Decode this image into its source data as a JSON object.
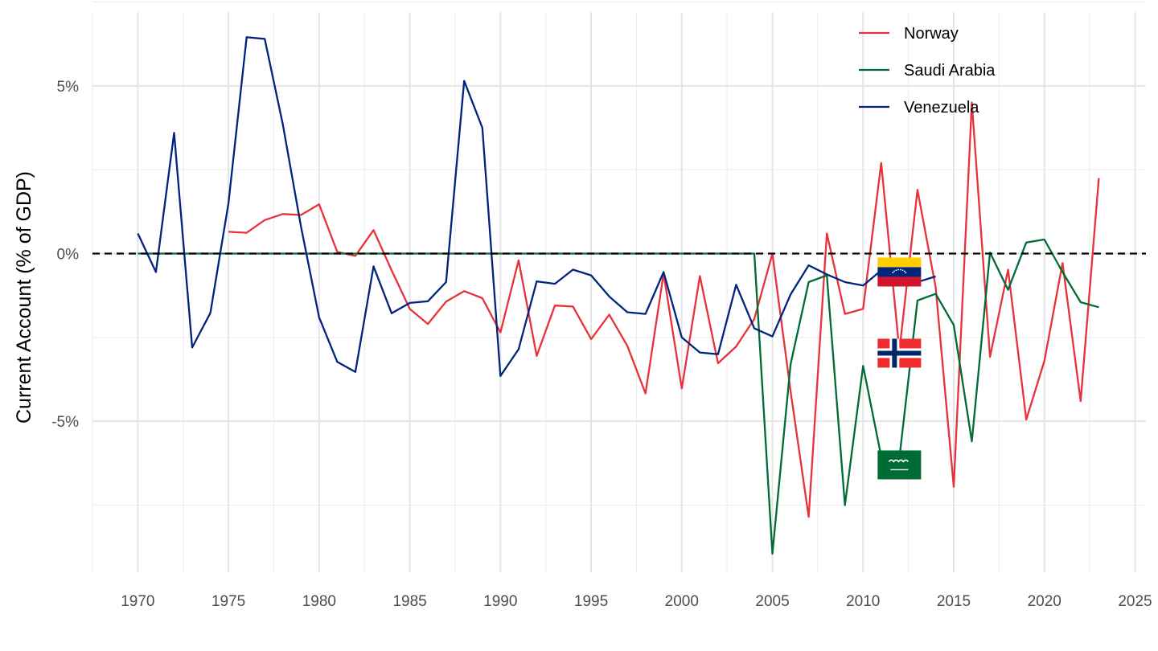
{
  "chart_data": {
    "type": "line",
    "ylabel": "Current Account (% of GDP)",
    "xlabel": "",
    "xlim": [
      1967.5,
      2025.6
    ],
    "ylim": [
      -9.5,
      7.2
    ],
    "x_ticks": [
      1970,
      1975,
      1980,
      1985,
      1990,
      1995,
      2000,
      2005,
      2010,
      2015,
      2020,
      2025
    ],
    "x_tick_labels": [
      "1970",
      "1975",
      "1980",
      "1985",
      "1990",
      "1995",
      "2000",
      "2005",
      "2010",
      "2015",
      "2020",
      "2025"
    ],
    "y_ticks": [
      5,
      0,
      -5
    ],
    "y_tick_labels": [
      "5%",
      "0%",
      "-5%"
    ],
    "y_minor_ticks": [
      7.5,
      2.5,
      -2.5,
      -7.5
    ],
    "reference_line": {
      "y": 0,
      "style": "dashed",
      "color": "#000000"
    },
    "grid": true,
    "legend_position": "top-right",
    "series": [
      {
        "name": "Norway",
        "color": "#e8313a",
        "x": [
          1975,
          1976,
          1977,
          1978,
          1979,
          1980,
          1981,
          1982,
          1983,
          1984,
          1985,
          1986,
          1987,
          1988,
          1989,
          1990,
          1991,
          1992,
          1993,
          1994,
          1995,
          1996,
          1997,
          1998,
          1999,
          2000,
          2001,
          2002,
          2003,
          2004,
          2005,
          2006,
          2007,
          2008,
          2009,
          2010,
          2011,
          2012,
          2013,
          2014,
          2015,
          2016,
          2017,
          2018,
          2019,
          2020,
          2021,
          2022,
          2023
        ],
        "y": [
          0.65,
          0.62,
          1.0,
          1.18,
          1.15,
          1.47,
          0.05,
          -0.07,
          0.7,
          -0.5,
          -1.65,
          -2.1,
          -1.43,
          -1.12,
          -1.33,
          -2.35,
          -0.2,
          -3.05,
          -1.55,
          -1.58,
          -2.55,
          -1.82,
          -2.75,
          -4.17,
          -0.6,
          -4.02,
          -0.67,
          -3.27,
          -2.77,
          -1.95,
          0.0,
          -4.1,
          -7.85,
          0.6,
          -1.8,
          -1.65,
          2.7,
          -2.9,
          1.9,
          -1.0,
          -6.95,
          4.5,
          -3.08,
          -0.48,
          -4.95,
          -3.2,
          -0.28,
          -4.4,
          2.25
        ]
      },
      {
        "name": "Saudi Arabia",
        "color": "#006c35",
        "x": [
          1970,
          1971,
          1972,
          1973,
          1974,
          1975,
          1976,
          1977,
          1978,
          1979,
          1980,
          1981,
          1982,
          1983,
          1984,
          1985,
          1986,
          1987,
          1988,
          1989,
          1990,
          1991,
          1992,
          1993,
          1994,
          1995,
          1996,
          1997,
          1998,
          1999,
          2000,
          2001,
          2002,
          2003,
          2004,
          2005,
          2006,
          2007,
          2008,
          2009,
          2010,
          2011,
          2012,
          2013,
          2014,
          2015,
          2016,
          2017,
          2018,
          2019,
          2020,
          2021,
          2022,
          2023
        ],
        "y": [
          0,
          0,
          0,
          0,
          0,
          0,
          0,
          0,
          0,
          0,
          0,
          0,
          0,
          0,
          0,
          0,
          0,
          0,
          0,
          0,
          0,
          0,
          0,
          0,
          0,
          0,
          0,
          0,
          0,
          0,
          0,
          0,
          0,
          0,
          0,
          -8.95,
          -3.3,
          -0.85,
          -0.65,
          -7.5,
          -3.35,
          -6.05,
          -6.1,
          -1.4,
          -1.2,
          -2.13,
          -5.6,
          0.03,
          -1.08,
          0.33,
          0.42,
          -0.55,
          -1.45,
          -1.6
        ]
      },
      {
        "name": "Venezuela",
        "color": "#00247d",
        "x": [
          1970,
          1971,
          1972,
          1973,
          1974,
          1975,
          1976,
          1977,
          1978,
          1979,
          1980,
          1981,
          1982,
          1983,
          1984,
          1985,
          1986,
          1987,
          1988,
          1989,
          1990,
          1991,
          1992,
          1993,
          1994,
          1995,
          1996,
          1997,
          1998,
          1999,
          2000,
          2001,
          2002,
          2003,
          2004,
          2005,
          2006,
          2007,
          2008,
          2009,
          2010,
          2011,
          2012,
          2013,
          2014
        ],
        "y": [
          0.6,
          -0.55,
          3.6,
          -2.8,
          -1.77,
          1.5,
          6.45,
          6.4,
          3.85,
          0.8,
          -1.9,
          -3.23,
          -3.53,
          -0.38,
          -1.78,
          -1.47,
          -1.42,
          -0.85,
          5.15,
          3.75,
          -3.65,
          -2.85,
          -0.83,
          -0.9,
          -0.48,
          -0.65,
          -1.28,
          -1.75,
          -1.8,
          -0.55,
          -2.5,
          -2.95,
          -3.0,
          -0.93,
          -2.23,
          -2.47,
          -1.22,
          -0.35,
          -0.62,
          -0.85,
          -0.95,
          -0.5,
          -0.6,
          -0.85,
          -0.68
        ]
      }
    ],
    "flags": [
      {
        "icon": "venezuela-flag-icon",
        "x": 2012,
        "y": -0.55
      },
      {
        "icon": "norway-flag-icon",
        "x": 2012,
        "y": -2.97
      },
      {
        "icon": "saudi-arabia-flag-icon",
        "x": 2012,
        "y": -6.3
      }
    ]
  }
}
